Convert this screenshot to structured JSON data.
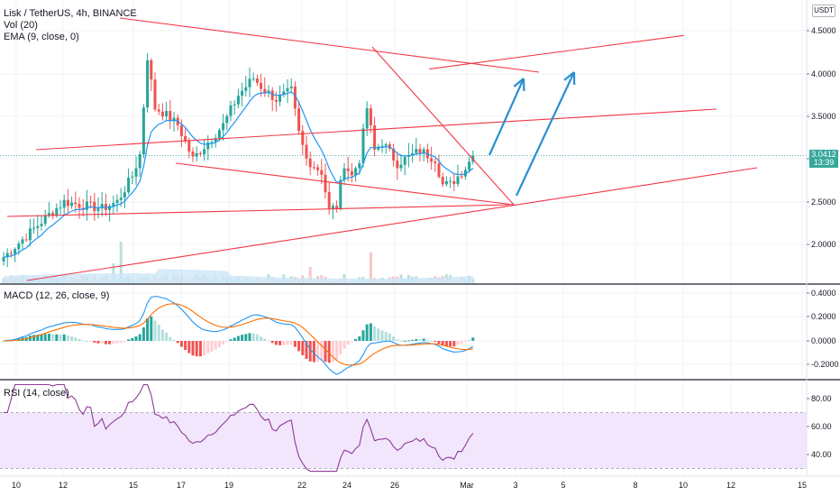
{
  "header": {
    "symbol_line": "Lisk / TetherUS, 4h, BINANCE",
    "vol_label": "Vol (20)",
    "ema_label": "EMA (9, close, 0)",
    "macd_label": "MACD (12, 26, close, 9)",
    "rsi_label": "RSI (14, close)",
    "currency": "USDT"
  },
  "price_tag": {
    "price": "3.0412",
    "countdown": "13:39"
  },
  "colors": {
    "up": "#26a69a",
    "down": "#ef5350",
    "ema": "#2196f3",
    "trendline": "#f23645",
    "arrow": "#2a8fd0",
    "macd_line": "#2196f3",
    "signal_line": "#ff6d00",
    "rsi_line": "#8e3b96",
    "rsi_band": "#f1e6fb"
  },
  "chart_data": [
    {
      "type": "candlestick",
      "pane": "price",
      "title": "Lisk / TetherUS, 4h, BINANCE",
      "y_ticks": [
        "4.5000",
        "4.0000",
        "3.5000",
        "3.0000",
        "2.5000",
        "2.0000"
      ],
      "ylim": [
        1.6,
        4.75
      ],
      "last_price": 3.0412,
      "x_ticks": [
        "10",
        "12",
        "15",
        "17",
        "19",
        "22",
        "24",
        "26",
        "Mar",
        "3",
        "5",
        "8",
        "10",
        "12",
        "15"
      ],
      "path_points": [
        [
          0,
          1.85
        ],
        [
          6,
          2.1
        ],
        [
          12,
          2.35
        ],
        [
          16,
          2.5
        ],
        [
          22,
          2.45
        ],
        [
          26,
          2.42
        ],
        [
          30,
          2.5
        ],
        [
          34,
          2.8
        ],
        [
          36,
          3.05
        ],
        [
          38,
          4.2
        ],
        [
          40,
          3.6
        ],
        [
          42,
          3.55
        ],
        [
          46,
          3.4
        ],
        [
          50,
          3.0
        ],
        [
          54,
          3.2
        ],
        [
          58,
          3.4
        ],
        [
          62,
          3.75
        ],
        [
          66,
          3.95
        ],
        [
          68,
          3.85
        ],
        [
          72,
          3.7
        ],
        [
          76,
          3.8
        ],
        [
          78,
          3.3
        ],
        [
          80,
          3.0
        ],
        [
          84,
          2.85
        ],
        [
          86,
          2.4
        ],
        [
          88,
          2.45
        ],
        [
          90,
          2.95
        ],
        [
          92,
          2.8
        ],
        [
          94,
          3.0
        ],
        [
          96,
          3.6
        ],
        [
          98,
          3.1
        ],
        [
          100,
          3.2
        ],
        [
          104,
          2.95
        ],
        [
          106,
          3.0
        ],
        [
          110,
          3.1
        ],
        [
          114,
          3.0
        ],
        [
          116,
          2.7
        ],
        [
          118,
          2.7
        ],
        [
          122,
          2.9
        ],
        [
          124,
          3.04
        ]
      ],
      "ema_period": 9,
      "volume_series_name": "Vol (20)",
      "drawings": {
        "channel_lines": 6,
        "arrows": 2
      }
    },
    {
      "type": "line",
      "pane": "macd",
      "title": "MACD (12, 26, close, 9)",
      "y_ticks": [
        "0.4000",
        "0.2000",
        "0.0000",
        "-0.2000"
      ],
      "ylim": [
        -0.32,
        0.45
      ]
    },
    {
      "type": "line",
      "pane": "rsi",
      "title": "RSI (14, close)",
      "y_ticks": [
        "80.00",
        "60.00",
        "40.00"
      ],
      "ylim": [
        25,
        92
      ],
      "band": [
        30,
        70
      ]
    }
  ]
}
